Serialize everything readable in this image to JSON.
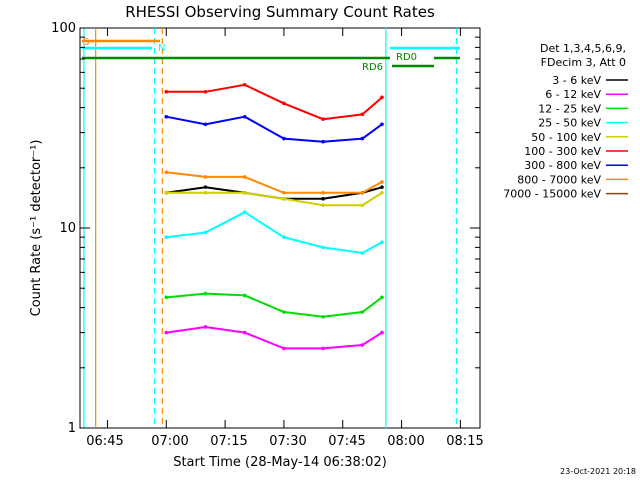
{
  "chart_data": {
    "type": "line",
    "title": "RHESSI Observing Summary Count Rates",
    "xlabel": "Start Time (28-May-14 06:38:02)",
    "ylabel": "Count Rate (s⁻¹ detector⁻¹)",
    "x_range": [
      "06:38",
      "08:20"
    ],
    "ylim": [
      1,
      100
    ],
    "yscale": "log",
    "x_tick_labels": [
      "06:45",
      "07:00",
      "07:15",
      "07:30",
      "07:45",
      "08:00",
      "08:15"
    ],
    "y_tick_labels": [
      "1",
      "10",
      "100"
    ],
    "legend_header": [
      "Det 1,3,4,5,6,9,",
      "FDecim 3, Att 0"
    ],
    "series": [
      {
        "name": "3 - 6 keV",
        "color": "#000000",
        "x": [
          "07:00",
          "07:10",
          "07:20",
          "07:30",
          "07:40",
          "07:50",
          "07:55"
        ],
        "values": [
          15,
          16,
          15,
          14,
          14,
          15,
          16
        ]
      },
      {
        "name": "6 - 12 keV",
        "color": "#ff00ff",
        "x": [
          "07:00",
          "07:10",
          "07:20",
          "07:30",
          "07:40",
          "07:50",
          "07:55"
        ],
        "values": [
          3.0,
          3.2,
          3.0,
          2.5,
          2.5,
          2.6,
          3.0
        ]
      },
      {
        "name": "12 - 25 keV",
        "color": "#00dd00",
        "x": [
          "07:00",
          "07:10",
          "07:20",
          "07:30",
          "07:40",
          "07:50",
          "07:55"
        ],
        "values": [
          4.5,
          4.7,
          4.6,
          3.8,
          3.6,
          3.8,
          4.5
        ]
      },
      {
        "name": "25 - 50 keV",
        "color": "#00ffff",
        "x": [
          "07:00",
          "07:10",
          "07:20",
          "07:30",
          "07:40",
          "07:50",
          "07:55"
        ],
        "values": [
          9.0,
          9.5,
          12,
          9.0,
          8.0,
          7.5,
          8.5
        ]
      },
      {
        "name": "50 - 100 keV",
        "color": "#d0d000",
        "x": [
          "07:00",
          "07:10",
          "07:20",
          "07:30",
          "07:40",
          "07:50",
          "07:55"
        ],
        "values": [
          15,
          15,
          15,
          14,
          13,
          13,
          15
        ]
      },
      {
        "name": "100 - 300 keV",
        "color": "#ff0000",
        "x": [
          "07:00",
          "07:10",
          "07:20",
          "07:30",
          "07:40",
          "07:50",
          "07:55"
        ],
        "values": [
          48,
          48,
          52,
          42,
          35,
          37,
          45
        ]
      },
      {
        "name": "300 - 800 keV",
        "color": "#0000ff",
        "x": [
          "07:00",
          "07:10",
          "07:20",
          "07:30",
          "07:40",
          "07:50",
          "07:55"
        ],
        "values": [
          36,
          33,
          36,
          28,
          27,
          28,
          33
        ]
      },
      {
        "name": "800 - 7000 keV",
        "color": "#ff8800",
        "x": [
          "07:00",
          "07:10",
          "07:20",
          "07:30",
          "07:40",
          "07:50",
          "07:55"
        ],
        "values": [
          19,
          18,
          18,
          15,
          15,
          15,
          17
        ]
      },
      {
        "name": "7000 - 15000 keV",
        "color": "#8b4513",
        "x": [],
        "values": []
      }
    ],
    "annotations": {
      "vertical_lines": [
        {
          "time": "06:39",
          "color": "#00ffff",
          "style": "solid"
        },
        {
          "time": "06:42",
          "color": "#ff8800",
          "style": "solid"
        },
        {
          "time": "06:57",
          "color": "#00ffff",
          "style": "dashed"
        },
        {
          "time": "06:59",
          "color": "#ff8800",
          "style": "dashed"
        },
        {
          "time": "07:56",
          "color": "#00ffff",
          "style": "solid"
        },
        {
          "time": "08:14",
          "color": "#00ffff",
          "style": "dashed"
        }
      ],
      "bar_labels": [
        "S",
        "N",
        "RD6",
        "RD0"
      ]
    },
    "footer": "23-Oct-2021 20:18",
    "grid": false
  }
}
